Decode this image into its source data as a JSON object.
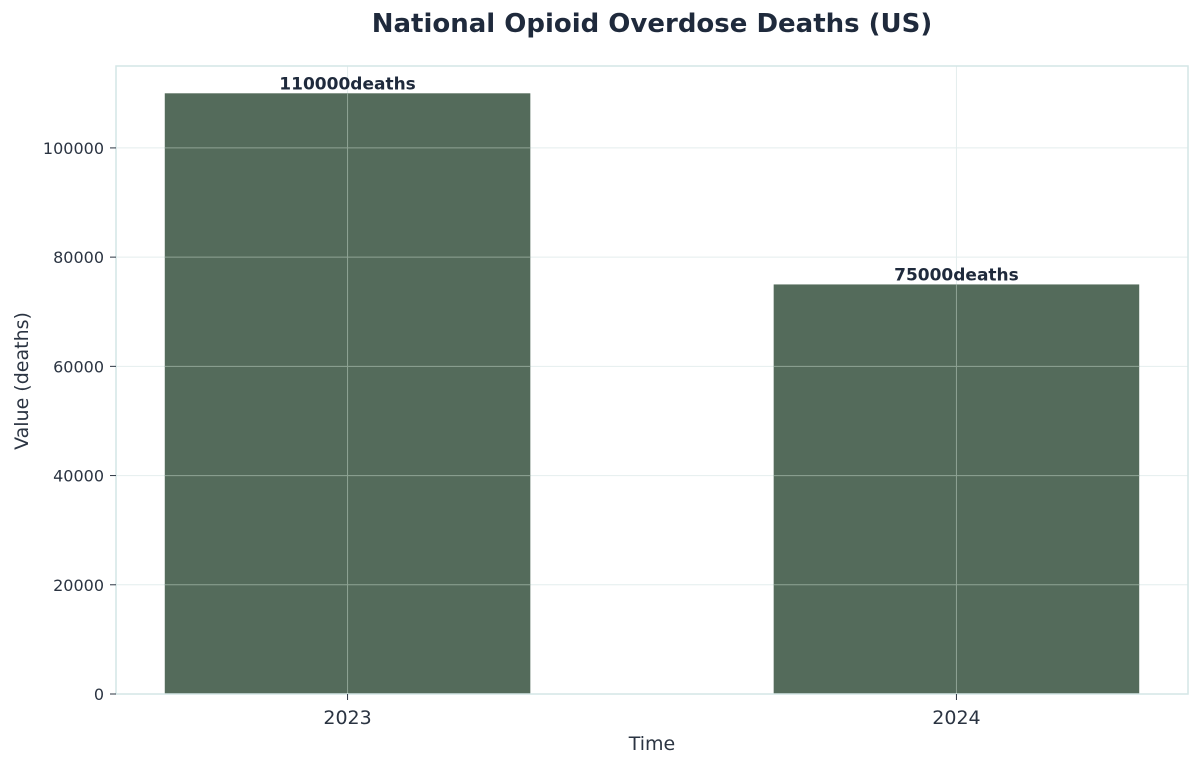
{
  "chart_data": {
    "type": "bar",
    "title": "National Opioid Overdose Deaths (US)",
    "xlabel": "Time",
    "ylabel": "Value (deaths)",
    "categories": [
      "2023",
      "2024"
    ],
    "values": [
      110000,
      75000
    ],
    "value_labels": [
      "110000deaths",
      "75000deaths"
    ],
    "ylim": [
      0,
      115000
    ],
    "yticks": [
      0,
      20000,
      40000,
      60000,
      80000,
      100000
    ],
    "ytick_labels": [
      "0",
      "20000",
      "40000",
      "60000",
      "80000",
      "100000"
    ],
    "grid": true,
    "legend": "none",
    "colors": {
      "bar": "#546b5b",
      "frame": "#d4e6e6",
      "grid": "#e4eeee",
      "grid_over_bar": "#8fa495",
      "text": "#1f2a3c"
    }
  }
}
